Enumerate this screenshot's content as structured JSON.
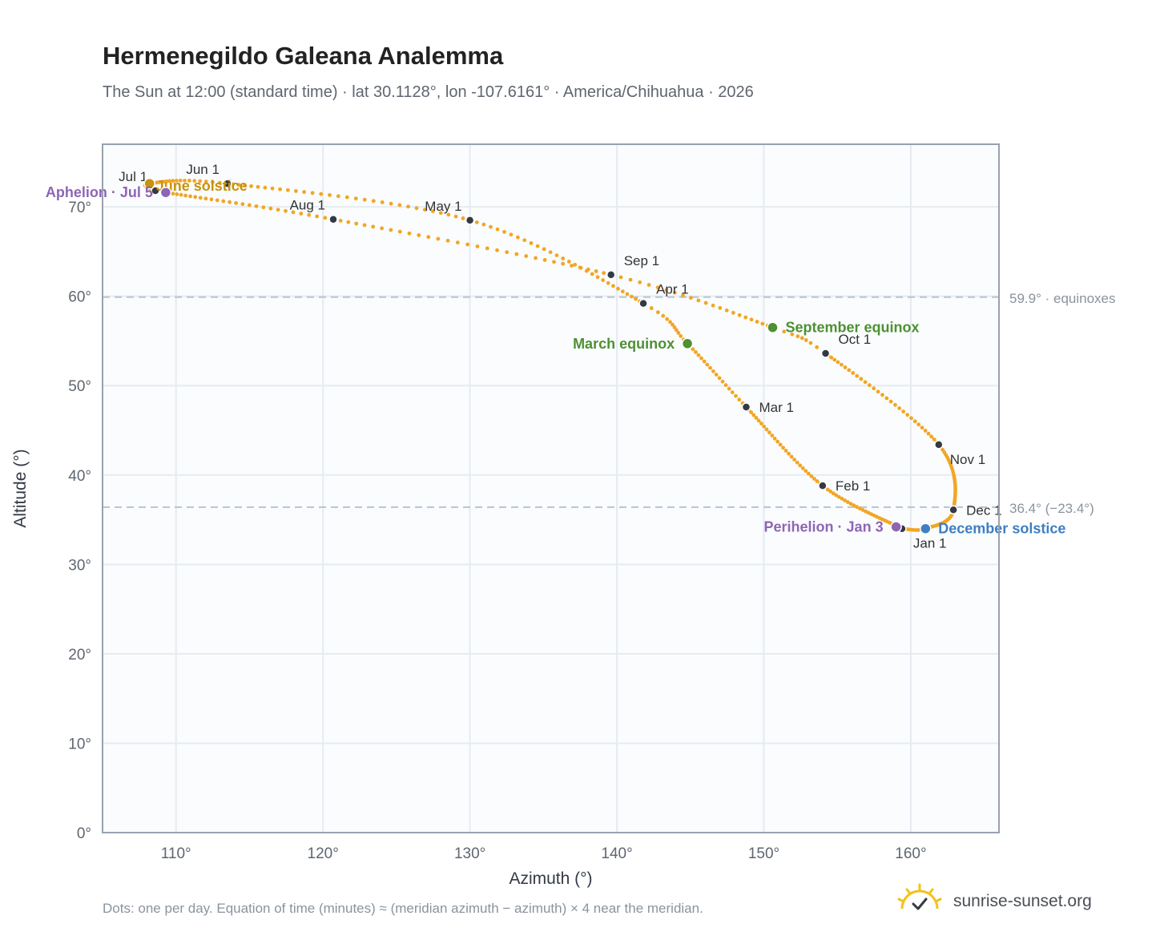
{
  "title": "Hermenegildo Galeana Analemma",
  "subtitle": "The Sun at 12:00 (standard time) · lat 30.1128°, lon -107.6161° · America/Chihuahua · 2026",
  "footnote": "Dots: one per day. Equation of time (minutes) ≈ (meridian azimuth − azimuth) × 4 near the meridian.",
  "brand": {
    "text": "sunrise-sunset.org",
    "icon": "sun-icon"
  },
  "colors": {
    "path": "#f2a623",
    "month_dot": "#333a44",
    "equinox": "#4e9032",
    "december_solstice": "#3e7fc1",
    "june_solstice": "#c9920c",
    "perihelion": "#8e65b4",
    "plot_bg": "#fafcfe",
    "grid": "#e6ebf1",
    "ref_line": "#b7c4d3"
  },
  "chart_data": {
    "type": "scatter",
    "xlabel": "Azimuth (°)",
    "ylabel": "Altitude (°)",
    "xlim": [
      105,
      166
    ],
    "ylim": [
      0,
      77
    ],
    "x_ticks": [
      110,
      120,
      130,
      140,
      150,
      160
    ],
    "x_tick_labels": [
      "110°",
      "120°",
      "130°",
      "140°",
      "150°",
      "160°"
    ],
    "y_ticks": [
      0,
      10,
      20,
      30,
      40,
      50,
      60,
      70
    ],
    "y_tick_labels": [
      "0°",
      "10°",
      "20°",
      "30°",
      "40°",
      "50°",
      "60°",
      "70°"
    ],
    "grid": true,
    "reference_lines": [
      {
        "y": 59.9,
        "label": "59.9° · equinoxes"
      },
      {
        "y": 36.4,
        "label": "36.4° (−23.4°)"
      }
    ],
    "path_anchors": [
      {
        "doy": 1,
        "az": 159.4,
        "alt": 34.0
      },
      {
        "doy": 32,
        "az": 154.0,
        "alt": 38.8
      },
      {
        "doy": 60,
        "az": 148.8,
        "alt": 47.6
      },
      {
        "doy": 79,
        "az": 144.8,
        "alt": 54.7
      },
      {
        "doy": 91,
        "az": 141.8,
        "alt": 59.2
      },
      {
        "doy": 121,
        "az": 130.0,
        "alt": 68.5
      },
      {
        "doy": 152,
        "az": 113.5,
        "alt": 72.6
      },
      {
        "doy": 172,
        "az": 108.2,
        "alt": 72.6
      },
      {
        "doy": 182,
        "az": 108.6,
        "alt": 71.8
      },
      {
        "doy": 186,
        "az": 109.3,
        "alt": 71.6
      },
      {
        "doy": 213,
        "az": 120.7,
        "alt": 68.6
      },
      {
        "doy": 244,
        "az": 139.6,
        "alt": 62.4
      },
      {
        "doy": 266,
        "az": 150.6,
        "alt": 56.5
      },
      {
        "doy": 274,
        "az": 154.2,
        "alt": 53.6
      },
      {
        "doy": 305,
        "az": 161.9,
        "alt": 43.4
      },
      {
        "doy": 335,
        "az": 162.9,
        "alt": 36.1
      },
      {
        "doy": 355,
        "az": 161.0,
        "alt": 34.0
      },
      {
        "doy": 366,
        "az": 159.4,
        "alt": 34.0
      }
    ],
    "month_markers": [
      {
        "label": "Jan 1",
        "az": 159.4,
        "alt": 34.0,
        "pos": "below-right"
      },
      {
        "label": "Feb 1",
        "az": 154.0,
        "alt": 38.8,
        "pos": "right"
      },
      {
        "label": "Mar 1",
        "az": 148.8,
        "alt": 47.6,
        "pos": "right"
      },
      {
        "label": "Apr 1",
        "az": 141.8,
        "alt": 59.2,
        "pos": "above-right"
      },
      {
        "label": "May 1",
        "az": 130.0,
        "alt": 68.5,
        "pos": "above-left"
      },
      {
        "label": "Jun 1",
        "az": 113.5,
        "alt": 72.6,
        "pos": "above-left"
      },
      {
        "label": "Jul 1",
        "az": 108.6,
        "alt": 71.8,
        "pos": "above-left"
      },
      {
        "label": "Aug 1",
        "az": 120.7,
        "alt": 68.6,
        "pos": "above-left"
      },
      {
        "label": "Sep 1",
        "az": 139.6,
        "alt": 62.4,
        "pos": "above-right"
      },
      {
        "label": "Oct 1",
        "az": 154.2,
        "alt": 53.6,
        "pos": "above-right"
      },
      {
        "label": "Nov 1",
        "az": 161.9,
        "alt": 43.4,
        "pos": "below-right"
      },
      {
        "label": "Dec 1",
        "az": 162.9,
        "alt": 36.1,
        "pos": "right"
      }
    ],
    "events": [
      {
        "label": "March equinox",
        "az": 144.8,
        "alt": 54.7,
        "color": "#4e9032",
        "pos": "left"
      },
      {
        "label": "September equinox",
        "az": 150.6,
        "alt": 56.5,
        "color": "#4e9032",
        "pos": "right"
      },
      {
        "label": "June solstice",
        "az": 108.2,
        "alt": 72.6,
        "color": "#c9920c",
        "pos": "right-below"
      },
      {
        "label": "December solstice",
        "az": 161.0,
        "alt": 34.0,
        "color": "#3e7fc1",
        "pos": "right"
      },
      {
        "label": "Aphelion · Jul 5",
        "az": 109.3,
        "alt": 71.6,
        "color": "#8e65b4",
        "pos": "left"
      },
      {
        "label": "Perihelion · Jan 3",
        "az": 159.0,
        "alt": 34.2,
        "color": "#8e65b4",
        "pos": "left"
      }
    ]
  }
}
